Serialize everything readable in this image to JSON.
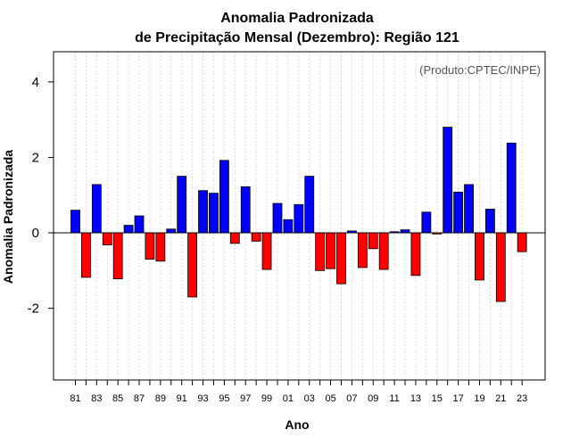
{
  "chart_data": {
    "type": "bar",
    "title_line1": "Anomalia Padronizada",
    "title_line2": "de Precipitação Mensal (Dezembro): Região 121",
    "xlabel": "Ano",
    "ylabel": "Anomalia Padronizada",
    "credit": "(Produto:CPTEC/INPE)",
    "ylim": [
      -3.9,
      4.8
    ],
    "yticks": [
      -2,
      0,
      2,
      4
    ],
    "categories": [
      "81",
      "82",
      "83",
      "84",
      "85",
      "86",
      "87",
      "88",
      "89",
      "90",
      "91",
      "92",
      "93",
      "94",
      "95",
      "96",
      "97",
      "98",
      "99",
      "00",
      "01",
      "02",
      "03",
      "04",
      "05",
      "06",
      "07",
      "08",
      "09",
      "10",
      "11",
      "12",
      "13",
      "14",
      "15",
      "16",
      "17",
      "18",
      "19",
      "20",
      "21",
      "22",
      "23"
    ],
    "xtick_labels": [
      "81",
      "83",
      "85",
      "87",
      "89",
      "91",
      "93",
      "95",
      "97",
      "99",
      "01",
      "03",
      "05",
      "07",
      "09",
      "11",
      "13",
      "15",
      "17",
      "19",
      "21",
      "23"
    ],
    "values": [
      0.6,
      -1.18,
      1.28,
      -0.32,
      -1.22,
      0.2,
      0.45,
      -0.7,
      -0.75,
      0.1,
      1.5,
      -1.7,
      1.12,
      1.05,
      1.92,
      -0.28,
      1.22,
      -0.22,
      -0.97,
      0.78,
      0.35,
      0.75,
      1.5,
      -1.0,
      -0.95,
      -1.35,
      0.05,
      -0.92,
      -0.42,
      -0.97,
      0.03,
      0.08,
      -1.13,
      0.55,
      -0.03,
      2.8,
      1.08,
      1.28,
      -1.25,
      0.63,
      -1.82,
      2.38,
      -0.5
    ],
    "positive_color": "#0000ff",
    "negative_color": "#ff0000",
    "gridline_color": "#d9d9d9"
  }
}
